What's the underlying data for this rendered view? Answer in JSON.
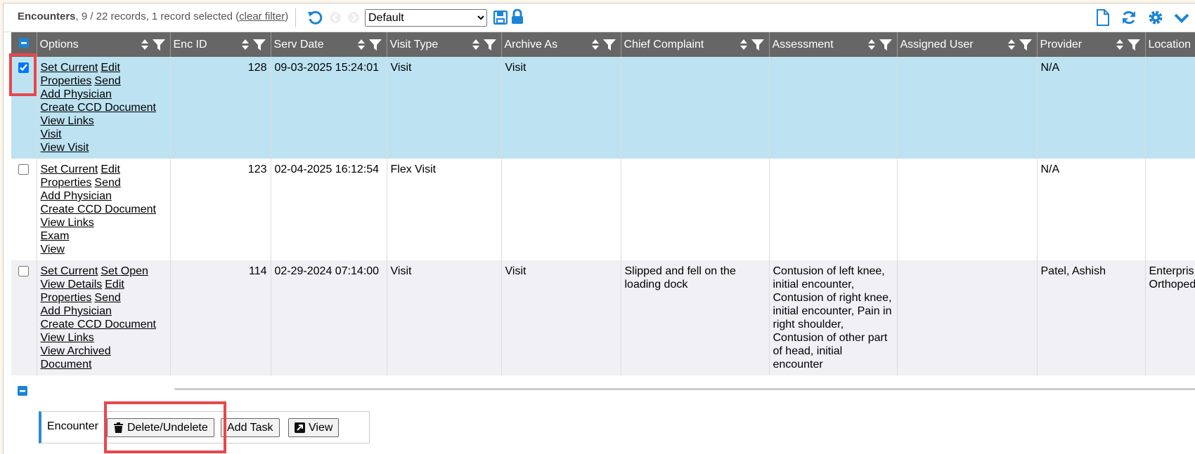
{
  "header": {
    "title": "Encounters",
    "record_info": "9 / 22 records, 1 record selected",
    "clear_filter": {
      "open": "(",
      "label": "clear filter",
      "close": ")"
    },
    "view_select": "Default"
  },
  "table": {
    "columns": [
      "Options",
      "Enc ID",
      "Serv Date",
      "Visit Type",
      "Archive As",
      "Chief Complaint",
      "Assessment",
      "Assigned User",
      "Provider",
      "Location"
    ],
    "rows": [
      {
        "selected": true,
        "options": [
          [
            "Set Current",
            "Edit"
          ],
          [
            "Properties",
            "Send"
          ],
          [
            "Add Physician"
          ],
          [
            "Create CCD Document"
          ],
          [
            "View Links"
          ],
          [
            "Visit"
          ],
          [
            "View Visit"
          ]
        ],
        "cells": [
          "128",
          "09-03-2025 15:24:01",
          "Visit",
          "Visit",
          "",
          "",
          "",
          "N/A",
          ""
        ]
      },
      {
        "selected": false,
        "options": [
          [
            "Set Current",
            "Edit"
          ],
          [
            "Properties",
            "Send"
          ],
          [
            "Add Physician"
          ],
          [
            "Create CCD Document"
          ],
          [
            "View Links"
          ],
          [
            "Exam"
          ],
          [
            "View"
          ]
        ],
        "cells": [
          "123",
          "02-04-2025 16:12:54",
          "Flex Visit",
          "",
          "",
          "",
          "",
          "N/A",
          ""
        ]
      },
      {
        "selected": false,
        "options": [
          [
            "Set Current",
            "Set Open"
          ],
          [
            "View Details",
            "Edit"
          ],
          [
            "Properties",
            "Send"
          ],
          [
            "Add Physician"
          ],
          [
            "Create CCD Document"
          ],
          [
            "View Links"
          ],
          [
            "View Archived Document"
          ]
        ],
        "cells": [
          "114",
          "02-29-2024 07:14:00",
          "Visit",
          "Visit",
          "Slipped and fell on the loading dock",
          "Contusion of left knee, initial encounter, Contusion of right knee, initial encounter, Pain in right shoulder, Contusion of other part of head, initial encounter",
          "",
          "Patel, Ashish",
          "Enterpris Orthoped"
        ]
      }
    ]
  },
  "actions": {
    "label": "Encounter",
    "buttons": [
      "Delete/Undelete",
      "Add Task",
      "View"
    ]
  }
}
